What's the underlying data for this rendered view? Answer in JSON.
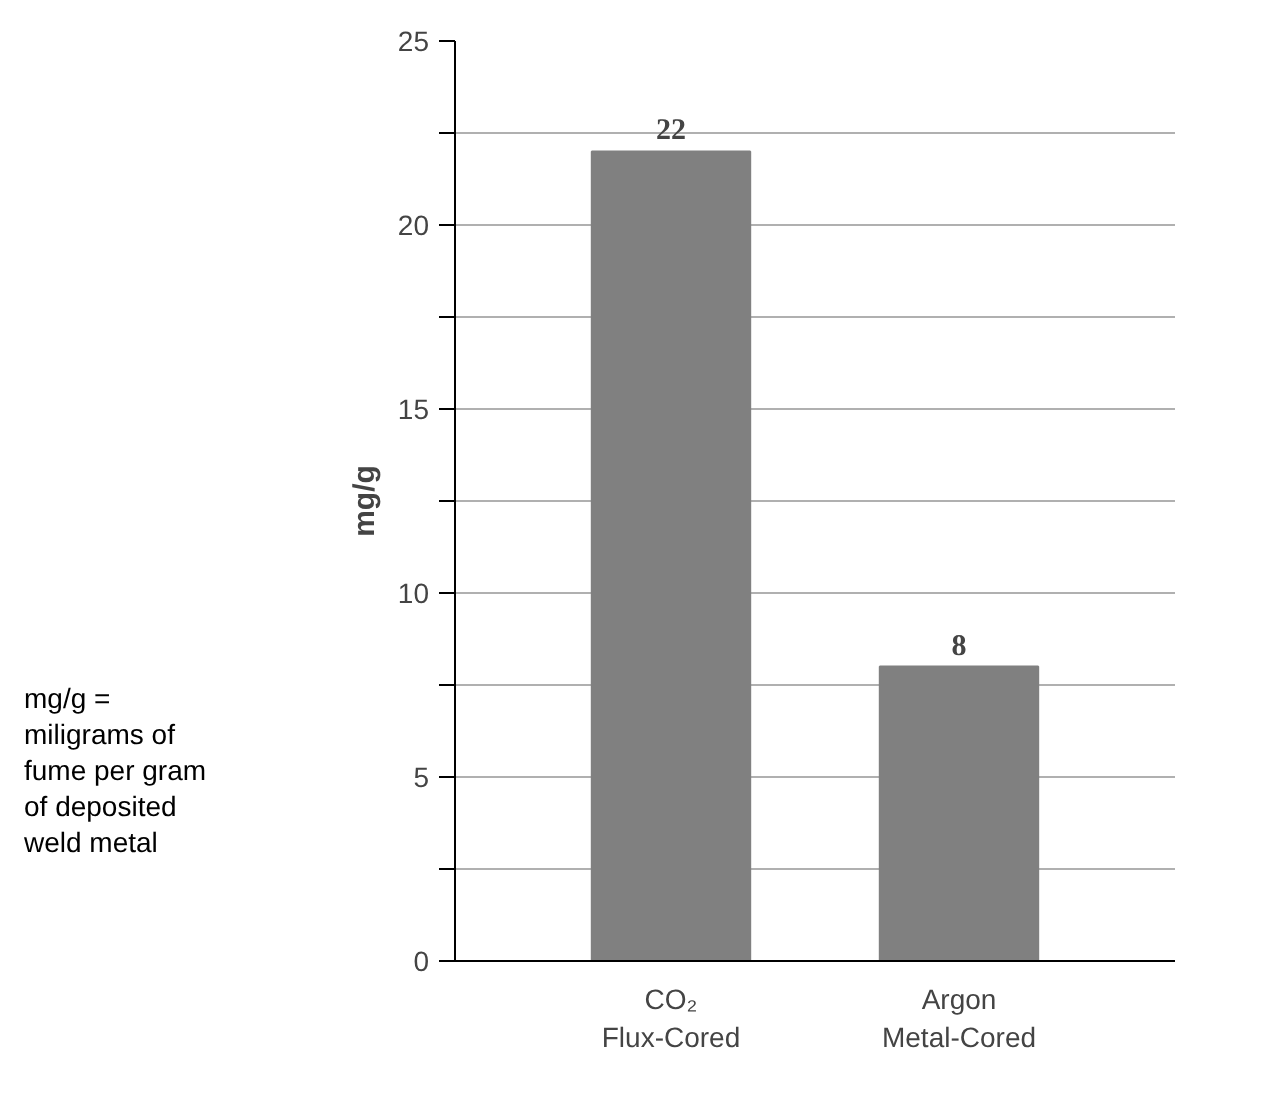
{
  "chart_data": {
    "type": "bar",
    "categories": [
      "CO₂\nFlux-Cored",
      "Argon\nMetal-Cored"
    ],
    "values": [
      22,
      8
    ],
    "color": "#808080",
    "ylabel": "mg/g",
    "ylim": [
      0,
      25
    ],
    "yticks": [
      0,
      {
        "value": 2.5,
        "label": null
      },
      5,
      {
        "value": 7.5,
        "label": null
      },
      10,
      {
        "value": 12.5,
        "label": null
      },
      15,
      {
        "value": 17.5,
        "label": null
      },
      20,
      {
        "value": 22.5,
        "label": null
      },
      25
    ],
    "grid": "y",
    "data_labels": true,
    "annotations": [
      "mg/g =\nmiligrams of\nfume per gram\nof deposited\nweld metal"
    ]
  }
}
